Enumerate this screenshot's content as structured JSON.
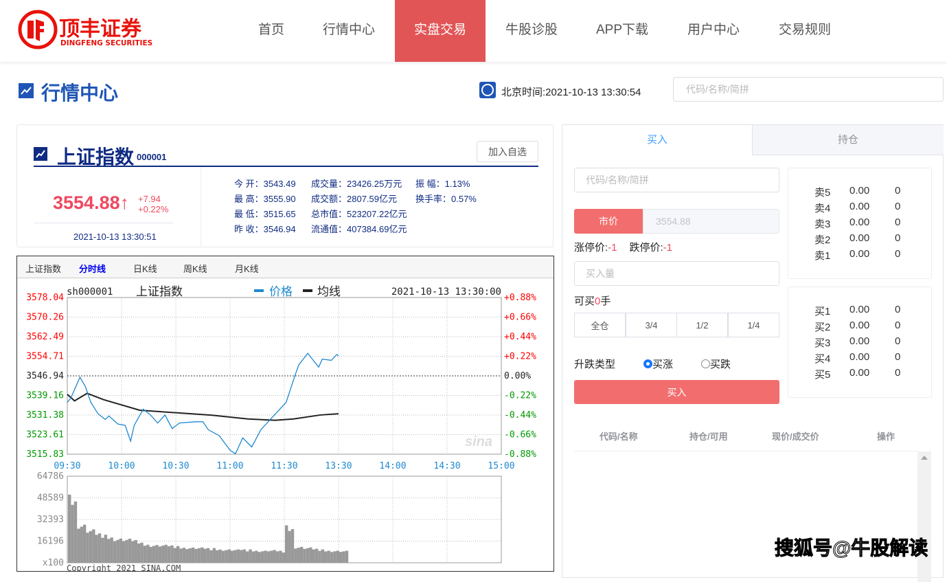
{
  "brand": {
    "name_cn": "顶丰证券",
    "name_en": "DINGFENG SECURITIES",
    "color": "#e8120c"
  },
  "nav": [
    {
      "label": "首页"
    },
    {
      "label": "行情中心"
    },
    {
      "label": "实盘交易",
      "active": true
    },
    {
      "label": "牛股诊股"
    },
    {
      "label": "APP下载"
    },
    {
      "label": "用户中心"
    },
    {
      "label": "交易规则"
    }
  ],
  "page": {
    "title": "行情中心",
    "beijing_time": "北京时间:2021-10-13 13:30:54",
    "search_placeholder": "代码/名称/简拼"
  },
  "quote": {
    "name": "上证指数",
    "code": "000001",
    "add_label": "加入自选",
    "price": "3554.88",
    "arrow": "↑",
    "change": "+7.94",
    "change_pct": "+0.22%",
    "time": "2021-10-13 13:30:51",
    "stats": [
      [
        "今 开：3543.49",
        "成交量：23426.25万元",
        "振 幅：1.13%"
      ],
      [
        "最 高：3555.90",
        "成交额：2807.59亿元",
        "换手率：0.57%"
      ],
      [
        "最 低：3515.65",
        "总市值：523207.22亿元",
        ""
      ],
      [
        "昨 收：3546.94",
        "流通值：407384.69亿元",
        ""
      ]
    ]
  },
  "chart_tabs": [
    {
      "label": "上证指数"
    },
    {
      "label": "分时线",
      "active": true
    },
    {
      "label": "日K线"
    },
    {
      "label": "周K线"
    },
    {
      "label": "月K线"
    }
  ],
  "chart_data": {
    "type": "line",
    "symbol": "sh000001",
    "name": "上证指数",
    "datetime": "2021-10-13 13:30:00",
    "legend": [
      {
        "name": "价格",
        "color": "#1e88d0"
      },
      {
        "name": "均线",
        "color": "#222222"
      }
    ],
    "ylim": [
      3515.83,
      3578.04
    ],
    "prev_close": 3546.94,
    "y_ticks": [
      "3578.04",
      "3570.26",
      "3562.49",
      "3554.71",
      "3546.94",
      "3539.16",
      "3531.38",
      "3523.61",
      "3515.83"
    ],
    "y2_ticks": [
      "+0.88%",
      "+0.66%",
      "+0.44%",
      "+0.22%",
      "0.00%",
      "-0.22%",
      "-0.44%",
      "-0.66%",
      "-0.88%"
    ],
    "x_ticks": [
      "09:30",
      "10:00",
      "10:30",
      "11:00",
      "11:30",
      "13:30",
      "14:00",
      "14:30",
      "15:00"
    ],
    "x_unit": "trading minutes from 09:30",
    "price": [
      [
        0,
        3536.4
      ],
      [
        2,
        3538.2
      ],
      [
        7,
        3546.4
      ],
      [
        10,
        3542.7
      ],
      [
        13,
        3536.4
      ],
      [
        17,
        3531.9
      ],
      [
        21,
        3529.6
      ],
      [
        23,
        3531.0
      ],
      [
        28,
        3527.8
      ],
      [
        32,
        3527.3
      ],
      [
        35,
        3521.0
      ],
      [
        37,
        3527.3
      ],
      [
        42,
        3533.7
      ],
      [
        46,
        3531.4
      ],
      [
        50,
        3528.2
      ],
      [
        54,
        3531.4
      ],
      [
        58,
        3526.0
      ],
      [
        62,
        3528.2
      ],
      [
        71,
        3528.7
      ],
      [
        75,
        3528.7
      ],
      [
        78,
        3525.5
      ],
      [
        84,
        3523.2
      ],
      [
        90,
        3517.4
      ],
      [
        93,
        3516.0
      ],
      [
        97,
        3522.3
      ],
      [
        102,
        3518.7
      ],
      [
        107,
        3525.5
      ],
      [
        114,
        3531.0
      ],
      [
        121,
        3536.4
      ],
      [
        126,
        3547.3
      ],
      [
        128,
        3551.3
      ],
      [
        133,
        3555.9
      ],
      [
        136,
        3553.1
      ],
      [
        139,
        3550.4
      ],
      [
        141,
        3553.6
      ],
      [
        146,
        3553.1
      ],
      [
        149,
        3555.4
      ],
      [
        150,
        3554.9
      ]
    ],
    "average": [
      [
        0,
        3539.6
      ],
      [
        4,
        3537.0
      ],
      [
        11,
        3540.0
      ],
      [
        20,
        3537.5
      ],
      [
        40,
        3533.3
      ],
      [
        60,
        3532.3
      ],
      [
        80,
        3531.3
      ],
      [
        100,
        3529.8
      ],
      [
        115,
        3529.3
      ],
      [
        125,
        3529.8
      ],
      [
        140,
        3531.4
      ],
      [
        150,
        3531.9
      ]
    ],
    "volume_ticks": [
      "64786",
      "48589",
      "32393",
      "16196",
      "x100"
    ],
    "volume_max": 64786,
    "volume": [
      51000,
      30000,
      25000,
      22000,
      21000,
      19000,
      18000,
      17000,
      15000,
      14000,
      13500,
      13000,
      12500,
      12000,
      11500,
      11000,
      11000,
      10500,
      10000,
      10000,
      10000,
      9500,
      9500,
      9000,
      28000,
      12500,
      11500,
      10500,
      10000,
      9500,
      9000
    ],
    "footer": "Copyright 2021 SINA.COM"
  },
  "trade": {
    "tabs": [
      {
        "label": "买入",
        "active": true
      },
      {
        "label": "持仓"
      }
    ],
    "code_placeholder": "代码/名称/简拼",
    "market_label": "市价",
    "price_value": "3554.88",
    "limit_up_label": "涨停价:",
    "limit_up": "-1",
    "limit_down_label": "跌停价:",
    "limit_down": "-1",
    "qty_placeholder": "买入量",
    "can_buy_prefix": "可买",
    "can_buy": "0",
    "can_buy_suffix": "手",
    "fractions": [
      "全仓",
      "3/4",
      "1/2",
      "1/4"
    ],
    "direction_label": "升跌类型",
    "options": [
      {
        "label": "买涨",
        "checked": true
      },
      {
        "label": "买跌",
        "checked": false
      }
    ],
    "submit": "买入",
    "asks": [
      [
        "卖5",
        "0.00",
        "0"
      ],
      [
        "卖4",
        "0.00",
        "0"
      ],
      [
        "卖3",
        "0.00",
        "0"
      ],
      [
        "卖2",
        "0.00",
        "0"
      ],
      [
        "卖1",
        "0.00",
        "0"
      ]
    ],
    "bids": [
      [
        "买1",
        "0.00",
        "0"
      ],
      [
        "买2",
        "0.00",
        "0"
      ],
      [
        "买3",
        "0.00",
        "0"
      ],
      [
        "买4",
        "0.00",
        "0"
      ],
      [
        "买5",
        "0.00",
        "0"
      ]
    ],
    "columns": [
      "代码/名称",
      "持仓/可用",
      "现价/成交价",
      "操作"
    ]
  },
  "watermark": "搜狐号@牛股解读"
}
